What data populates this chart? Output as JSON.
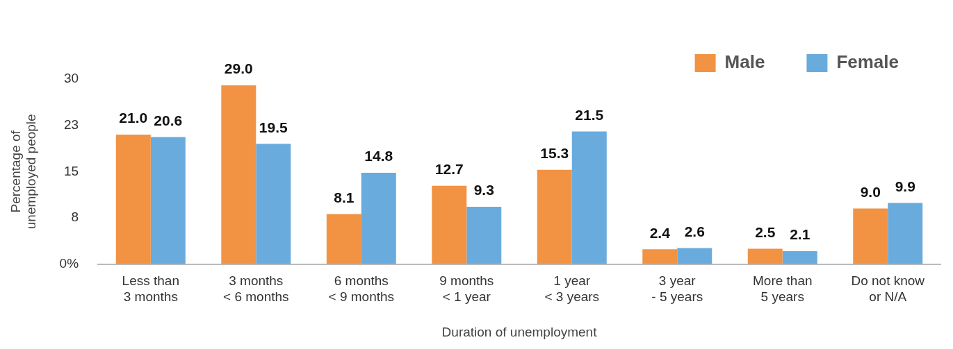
{
  "chart_data": {
    "type": "bar",
    "xlabel": "Duration of unemployment",
    "ylabel": "Percentage of\nunemployed people",
    "categories": [
      "Less than\n3 months",
      "3 months\n< 6 months",
      "6 months\n< 9 months",
      "9 months\n< 1 year",
      "1 year\n< 3 years",
      "3 year\n- 5 years",
      "More than\n5 years",
      "Do not know\nor N/A"
    ],
    "series": [
      {
        "name": "Male",
        "color": "#f29343",
        "values": [
          21.0,
          29.0,
          8.1,
          12.7,
          15.3,
          2.4,
          2.5,
          9.0
        ],
        "value_labels": [
          "21.0",
          "29.0",
          "8.1",
          "12.7",
          "15.3",
          "2.4",
          "2.5",
          "9.0"
        ]
      },
      {
        "name": "Female",
        "color": "#6aabdd",
        "values": [
          20.6,
          19.5,
          14.8,
          9.3,
          21.5,
          2.6,
          2.1,
          9.9
        ],
        "value_labels": [
          "20.6",
          "19.5",
          "14.8",
          "9.3",
          "21.5",
          "2.6",
          "2.1",
          "9.9"
        ]
      }
    ],
    "ylim": [
      0,
      30
    ],
    "yticks": [
      {
        "value": 0,
        "label": "0%"
      },
      {
        "value": 7.5,
        "label": "8"
      },
      {
        "value": 15,
        "label": "15"
      },
      {
        "value": 22.5,
        "label": "23"
      },
      {
        "value": 30,
        "label": "30"
      }
    ],
    "grid": false,
    "legend": "top right"
  }
}
